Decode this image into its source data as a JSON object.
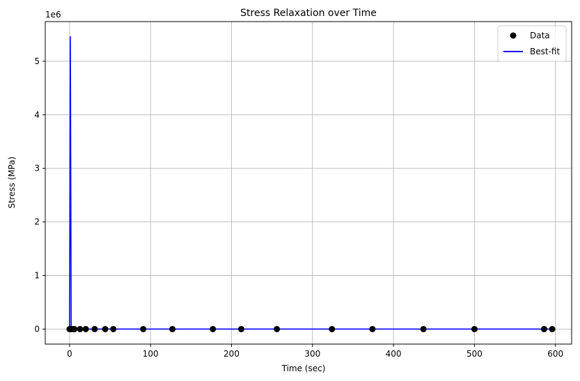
{
  "chart_data": {
    "type": "scatter",
    "title": "Stress Relaxation over Time",
    "xlabel": "Time (sec)",
    "ylabel": "Stress (MPa)",
    "y_offset_label": "1e6",
    "y_multiplier": 1000000,
    "xlim": [
      -30,
      620
    ],
    "ylim": [
      -280000,
      5740000
    ],
    "x_ticks": [
      0,
      100,
      200,
      300,
      400,
      500,
      600
    ],
    "x_tick_labels": [
      "0",
      "100",
      "200",
      "300",
      "400",
      "500",
      "600"
    ],
    "y_ticks": [
      0,
      1000000,
      2000000,
      3000000,
      4000000,
      5000000
    ],
    "y_tick_labels": [
      "0",
      "1",
      "2",
      "3",
      "4",
      "5"
    ],
    "grid": true,
    "legend_position": "top-right",
    "series": [
      {
        "name": "Data",
        "kind": "scatter",
        "color": "#000000",
        "x": [
          0,
          2,
          4,
          6,
          13,
          20,
          31,
          44,
          54,
          91,
          127,
          177,
          212,
          256,
          324,
          374,
          437,
          500,
          586,
          596
        ],
        "y": [
          0,
          0,
          0,
          0,
          0,
          0,
          0,
          0,
          0,
          0,
          0,
          0,
          0,
          0,
          0,
          0,
          0,
          0,
          0,
          0
        ]
      },
      {
        "name": "Best-fit",
        "kind": "line",
        "color": "#0000ff",
        "x": [
          0,
          1,
          2,
          3,
          6,
          13,
          20,
          31,
          44,
          54,
          91,
          127,
          177,
          212,
          256,
          324,
          374,
          437,
          500,
          586,
          596
        ],
        "y": [
          0,
          5460000,
          0,
          0,
          0,
          0,
          0,
          0,
          0,
          0,
          0,
          0,
          0,
          0,
          0,
          0,
          0,
          0,
          0,
          0,
          0
        ]
      }
    ]
  }
}
